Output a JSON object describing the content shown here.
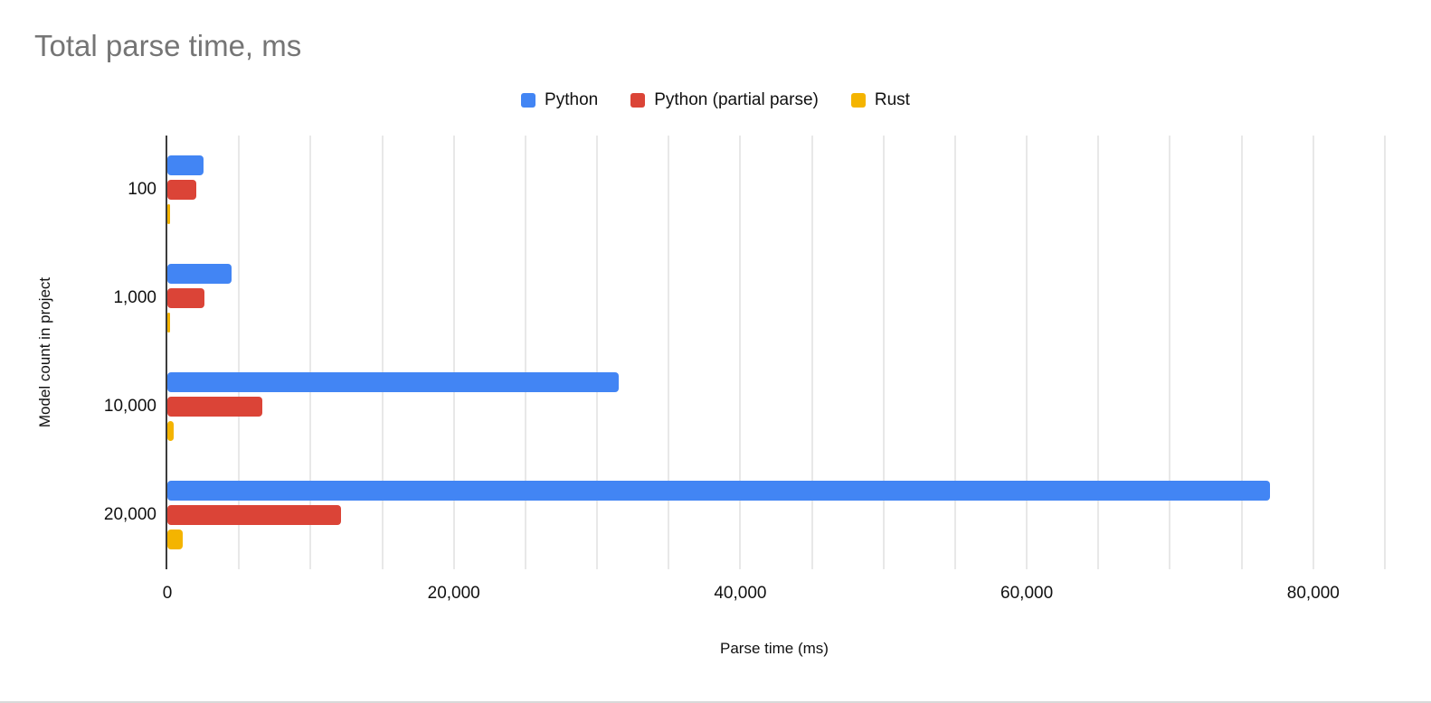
{
  "chart_data": {
    "type": "bar",
    "orientation": "horizontal",
    "title": "Total parse time, ms",
    "xlabel": "Parse time (ms)",
    "ylabel": "Model count in project",
    "categories": [
      "100",
      "1,000",
      "10,000",
      "20,000"
    ],
    "series": [
      {
        "name": "Python",
        "color": "#4285F4",
        "values": [
          2500,
          4500,
          31500,
          77000
        ]
      },
      {
        "name": "Python (partial parse)",
        "color": "#DB4437",
        "values": [
          2000,
          2600,
          6600,
          12100
        ]
      },
      {
        "name": "Rust",
        "color": "#F4B400",
        "values": [
          130,
          190,
          440,
          1070
        ]
      }
    ],
    "xlim": [
      0,
      85000
    ],
    "x_major_ticks": [
      0,
      20000,
      40000,
      60000,
      80000
    ],
    "x_tick_labels": [
      "0",
      "20,000",
      "40,000",
      "60,000",
      "80,000"
    ],
    "gridline_interval": 5000,
    "grid": true,
    "legend_position": "top"
  },
  "colors": {
    "title": "#757575",
    "gridline": "#e8e8e8",
    "axis": "#3c3c3c",
    "text": "#111111",
    "background": "#ffffff"
  }
}
